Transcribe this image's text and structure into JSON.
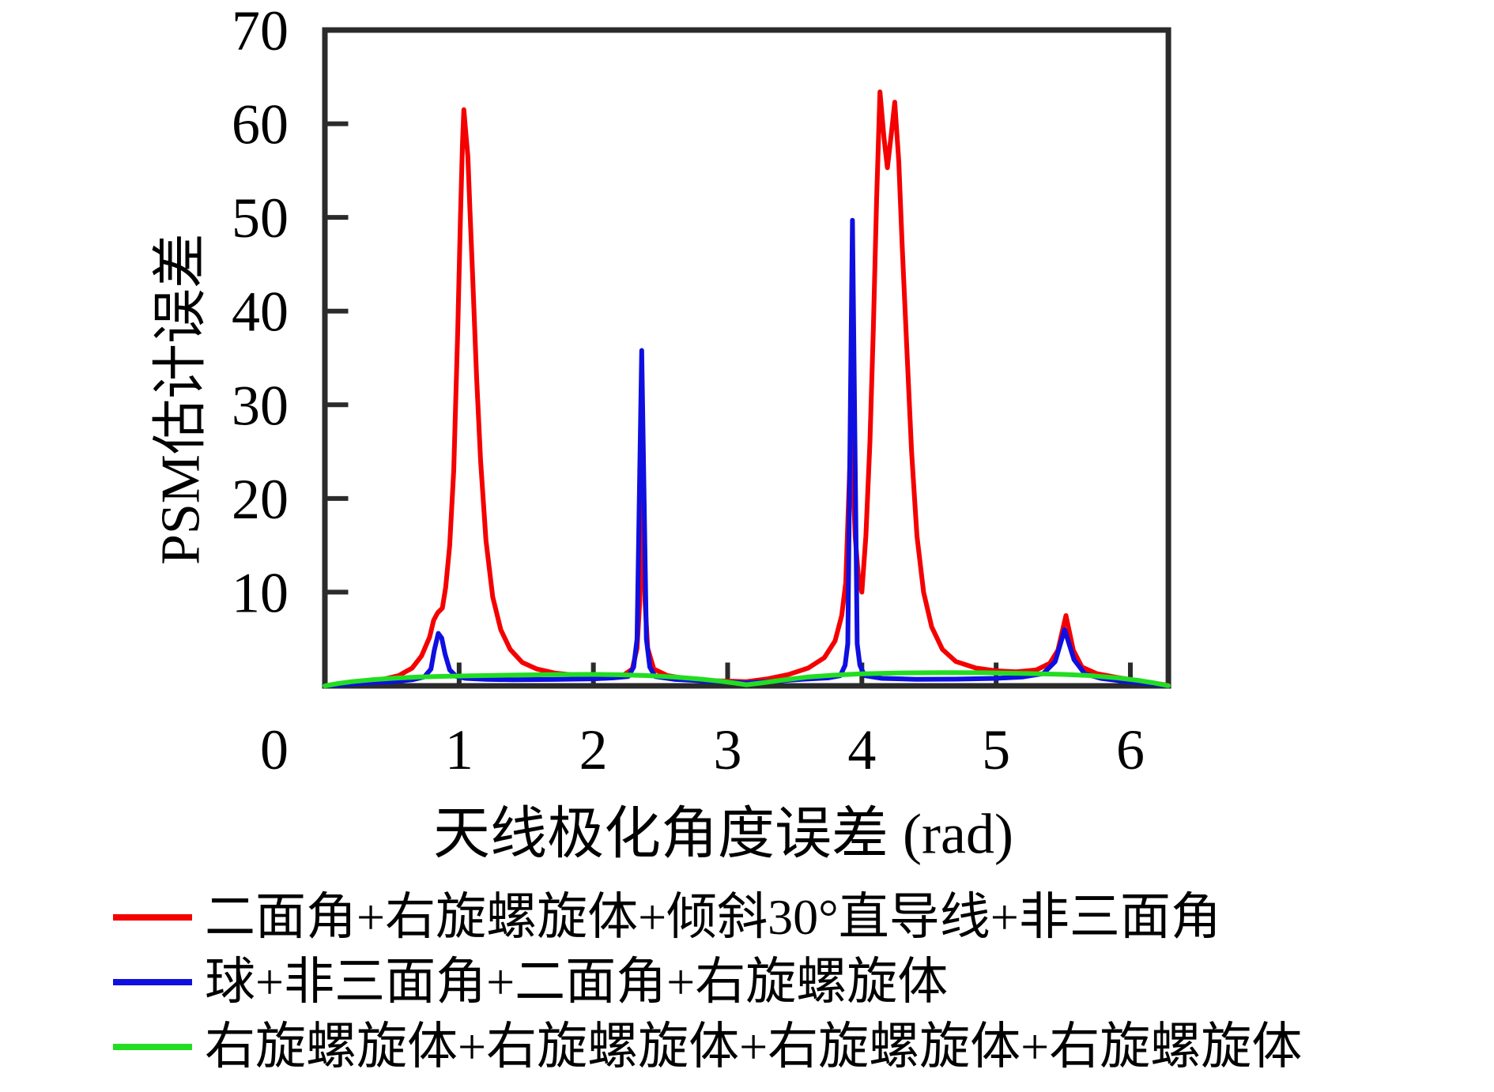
{
  "figure": {
    "background": "#ffffff",
    "axis_color": "#2b2b2b",
    "text_color": "#000000"
  },
  "chart_data": {
    "type": "line",
    "title": "",
    "xlabel": "天线极化角度误差 (rad)",
    "ylabel": "PSM估计误差",
    "origin_label": "0",
    "xlim": [
      0,
      6.2832
    ],
    "ylim": [
      0,
      70
    ],
    "x_ticks": [
      0,
      1,
      2,
      3,
      4,
      5,
      6
    ],
    "y_ticks": [
      10,
      20,
      30,
      40,
      50,
      60,
      70
    ],
    "grid": false,
    "legend_position": "below-left",
    "series": [
      {
        "name": "二面角+右旋螺旋体+倾斜30°直导线+非三面角",
        "color": "#f40000",
        "points": [
          [
            0,
            0
          ],
          [
            0.15,
            0.2
          ],
          [
            0.3,
            0.45
          ],
          [
            0.45,
            0.75
          ],
          [
            0.55,
            1.1
          ],
          [
            0.65,
            1.9
          ],
          [
            0.72,
            3.2
          ],
          [
            0.78,
            5.2
          ],
          [
            0.81,
            7
          ],
          [
            0.84,
            7.8
          ],
          [
            0.875,
            8.3
          ],
          [
            0.9,
            10.5
          ],
          [
            0.93,
            15
          ],
          [
            0.96,
            23
          ],
          [
            0.99,
            38
          ],
          [
            1.01,
            50
          ],
          [
            1.025,
            58
          ],
          [
            1.035,
            61.5
          ],
          [
            1.05,
            59
          ],
          [
            1.065,
            56.5
          ],
          [
            1.08,
            51
          ],
          [
            1.1,
            44
          ],
          [
            1.13,
            33
          ],
          [
            1.16,
            24
          ],
          [
            1.2,
            15.5
          ],
          [
            1.25,
            9.5
          ],
          [
            1.31,
            6
          ],
          [
            1.38,
            3.9
          ],
          [
            1.47,
            2.5
          ],
          [
            1.58,
            1.8
          ],
          [
            1.72,
            1.35
          ],
          [
            1.9,
            1.1
          ],
          [
            2.1,
            1
          ],
          [
            2.22,
            1.1
          ],
          [
            2.29,
            1.8
          ],
          [
            2.325,
            4
          ],
          [
            2.345,
            9
          ],
          [
            2.365,
            21.1
          ],
          [
            2.385,
            9
          ],
          [
            2.405,
            4
          ],
          [
            2.45,
            1.8
          ],
          [
            2.55,
            1.1
          ],
          [
            2.7,
            0.75
          ],
          [
            2.9,
            0.55
          ],
          [
            3.14,
            0.45
          ],
          [
            3.3,
            0.75
          ],
          [
            3.45,
            1.2
          ],
          [
            3.6,
            1.9
          ],
          [
            3.72,
            3
          ],
          [
            3.8,
            4.8
          ],
          [
            3.85,
            7.5
          ],
          [
            3.88,
            11
          ],
          [
            3.92,
            27.5
          ],
          [
            3.95,
            16
          ],
          [
            3.975,
            11.5
          ],
          [
            4.0,
            10
          ],
          [
            4.03,
            16
          ],
          [
            4.06,
            26
          ],
          [
            4.085,
            38
          ],
          [
            4.11,
            52
          ],
          [
            4.135,
            63.4
          ],
          [
            4.165,
            58.5
          ],
          [
            4.19,
            55.3
          ],
          [
            4.22,
            59
          ],
          [
            4.245,
            62.3
          ],
          [
            4.275,
            56
          ],
          [
            4.3,
            47
          ],
          [
            4.335,
            36
          ],
          [
            4.37,
            25
          ],
          [
            4.41,
            16
          ],
          [
            4.46,
            10
          ],
          [
            4.52,
            6.3
          ],
          [
            4.6,
            3.9
          ],
          [
            4.7,
            2.6
          ],
          [
            4.85,
            1.9
          ],
          [
            5.0,
            1.6
          ],
          [
            5.15,
            1.5
          ],
          [
            5.3,
            1.7
          ],
          [
            5.4,
            2.4
          ],
          [
            5.46,
            3.8
          ],
          [
            5.52,
            7.5
          ],
          [
            5.575,
            3.8
          ],
          [
            5.64,
            2
          ],
          [
            5.75,
            1.3
          ],
          [
            5.9,
            0.9
          ],
          [
            6.05,
            0.55
          ],
          [
            6.17,
            0.3
          ],
          [
            6.283,
            0.05
          ]
        ]
      },
      {
        "name": "球+非三面角+二面角+右旋螺旋体",
        "color": "#0f0fe0",
        "points": [
          [
            0,
            0
          ],
          [
            0.15,
            0.15
          ],
          [
            0.3,
            0.3
          ],
          [
            0.5,
            0.45
          ],
          [
            0.65,
            0.65
          ],
          [
            0.74,
            0.95
          ],
          [
            0.79,
            1.8
          ],
          [
            0.815,
            3.8
          ],
          [
            0.845,
            5.6
          ],
          [
            0.87,
            5.1
          ],
          [
            0.895,
            3.4
          ],
          [
            0.93,
            1.7
          ],
          [
            0.98,
            1
          ],
          [
            1.05,
            0.8
          ],
          [
            1.2,
            0.7
          ],
          [
            1.4,
            0.65
          ],
          [
            1.7,
            0.68
          ],
          [
            2.0,
            0.75
          ],
          [
            2.15,
            0.85
          ],
          [
            2.26,
            1
          ],
          [
            2.3,
            2
          ],
          [
            2.325,
            5
          ],
          [
            2.36,
            35.8
          ],
          [
            2.395,
            5
          ],
          [
            2.42,
            2
          ],
          [
            2.46,
            1
          ],
          [
            2.6,
            0.7
          ],
          [
            2.8,
            0.55
          ],
          [
            3.0,
            0.4
          ],
          [
            3.14,
            0.3
          ],
          [
            3.35,
            0.5
          ],
          [
            3.55,
            0.7
          ],
          [
            3.75,
            0.85
          ],
          [
            3.84,
            1.1
          ],
          [
            3.875,
            2.2
          ],
          [
            3.895,
            4.5
          ],
          [
            3.93,
            49.7
          ],
          [
            3.965,
            4.5
          ],
          [
            3.985,
            2.2
          ],
          [
            4.02,
            1.1
          ],
          [
            4.15,
            0.8
          ],
          [
            4.4,
            0.7
          ],
          [
            4.7,
            0.72
          ],
          [
            5.0,
            0.8
          ],
          [
            5.2,
            0.95
          ],
          [
            5.35,
            1.3
          ],
          [
            5.44,
            2.6
          ],
          [
            5.51,
            6
          ],
          [
            5.58,
            2.8
          ],
          [
            5.66,
            1.3
          ],
          [
            5.78,
            0.8
          ],
          [
            5.95,
            0.5
          ],
          [
            6.1,
            0.3
          ],
          [
            6.283,
            0.02
          ]
        ]
      },
      {
        "name": "右旋螺旋体+右旋螺旋体+右旋螺旋体+右旋螺旋体",
        "color": "#22dd22",
        "points": [
          [
            0,
            0
          ],
          [
            0.1,
            0.25
          ],
          [
            0.2,
            0.45
          ],
          [
            0.35,
            0.65
          ],
          [
            0.5,
            0.8
          ],
          [
            0.7,
            0.95
          ],
          [
            0.9,
            1.02
          ],
          [
            1.1,
            1.08
          ],
          [
            1.4,
            1.15
          ],
          [
            1.7,
            1.2
          ],
          [
            2.0,
            1.22
          ],
          [
            2.2,
            1.18
          ],
          [
            2.4,
            1.1
          ],
          [
            2.6,
            0.95
          ],
          [
            2.8,
            0.72
          ],
          [
            2.95,
            0.5
          ],
          [
            3.05,
            0.3
          ],
          [
            3.14,
            0.12
          ],
          [
            3.25,
            0.3
          ],
          [
            3.4,
            0.6
          ],
          [
            3.6,
            0.95
          ],
          [
            3.8,
            1.15
          ],
          [
            4.0,
            1.28
          ],
          [
            4.3,
            1.38
          ],
          [
            4.6,
            1.42
          ],
          [
            4.9,
            1.4
          ],
          [
            5.2,
            1.33
          ],
          [
            5.5,
            1.22
          ],
          [
            5.7,
            1.1
          ],
          [
            5.9,
            0.85
          ],
          [
            6.05,
            0.6
          ],
          [
            6.18,
            0.3
          ],
          [
            6.283,
            0.02
          ]
        ]
      }
    ]
  }
}
